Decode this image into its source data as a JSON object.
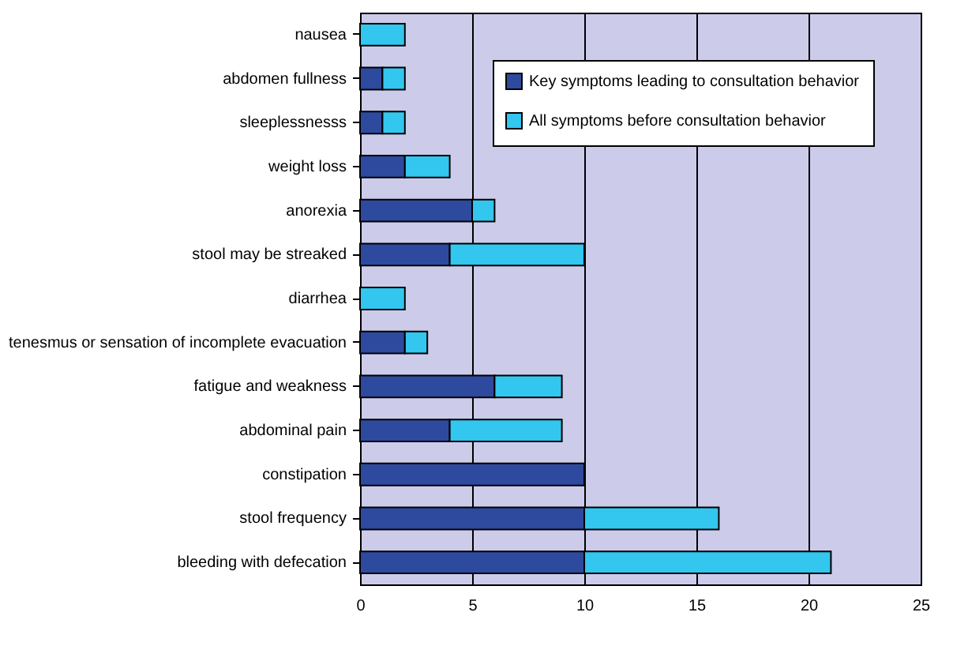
{
  "chart_data": {
    "type": "bar",
    "orientation": "horizontal",
    "stacked": true,
    "categories": [
      "nausea",
      "abdomen fullness",
      "sleeplessnesss",
      "weight loss",
      "anorexia",
      "stool may be streaked",
      "diarrhea",
      "tenesmus or sensation of incomplete evacuation",
      "fatigue and weakness",
      "abdominal pain",
      "constipation",
      "stool frequency",
      "bleeding with defecation"
    ],
    "series": [
      {
        "name": "Key symptoms leading to consultation behavior",
        "color": "#2e4a9e",
        "values": [
          0,
          1,
          1,
          2,
          5,
          4,
          0,
          2,
          6,
          4,
          10,
          10,
          10
        ]
      },
      {
        "name": "All symptoms before consultation behavior",
        "color": "#33c6ee",
        "values": [
          2,
          1,
          1,
          2,
          1,
          6,
          2,
          1,
          3,
          5,
          0,
          6,
          11
        ]
      }
    ],
    "xlim": [
      0,
      25
    ],
    "xticks": [
      0,
      5,
      10,
      15,
      20,
      25
    ],
    "grid": "x",
    "legend": "top right"
  }
}
